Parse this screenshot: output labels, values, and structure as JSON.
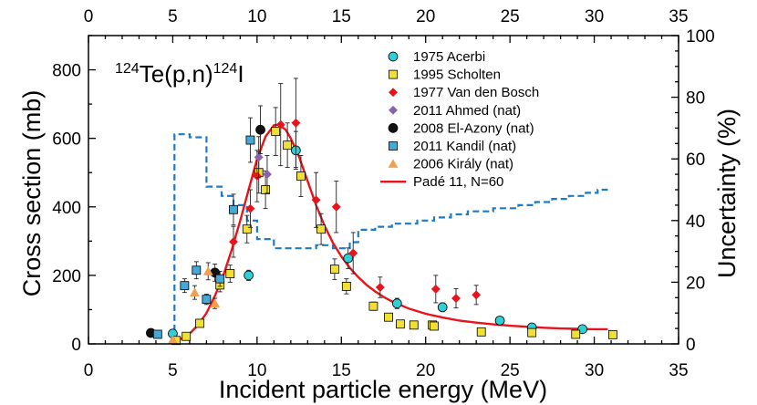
{
  "chart_data": {
    "type": "scatter",
    "annotation": {
      "mass_left": "124",
      "element_left": "Te(p,n)",
      "mass_right": "124",
      "element_right": "I"
    },
    "xlabel": "Incident particle energy (MeV)",
    "ylabel_left": "Cross section (mb)",
    "ylabel_right": "Uncertainty (%)",
    "xlim": [
      0,
      35
    ],
    "ylim_left": [
      0,
      900
    ],
    "ylim_right": [
      0,
      100
    ],
    "x_ticks": [
      "0",
      "5",
      "10",
      "15",
      "20",
      "25",
      "30",
      "35"
    ],
    "y_left_ticks": [
      "0",
      "200",
      "400",
      "600",
      "800"
    ],
    "y_right_ticks": [
      "0",
      "20",
      "40",
      "60",
      "80",
      "100"
    ],
    "legend_position": "top-right",
    "grid": false,
    "series": [
      {
        "name": "1975 Acerbi",
        "marker": "circle",
        "color": "#2ecfd6",
        "points": [
          [
            9.5,
            200,
            15
          ],
          [
            18.3,
            118,
            15
          ],
          [
            21.0,
            107,
            13
          ],
          [
            24.4,
            68,
            10
          ],
          [
            26.3,
            48,
            8
          ],
          [
            29.3,
            43,
            6
          ],
          [
            12.3,
            565,
            55
          ],
          [
            15.4,
            250,
            30
          ],
          [
            5.0,
            30,
            5
          ]
        ]
      },
      {
        "name": "1995 Scholten",
        "marker": "square",
        "color": "#f0e033",
        "points": [
          [
            5.2,
            10,
            3
          ],
          [
            5.8,
            22,
            4
          ],
          [
            6.6,
            60,
            8
          ],
          [
            7.8,
            172,
            20
          ],
          [
            8.4,
            205,
            25
          ],
          [
            9.4,
            335,
            40
          ],
          [
            10.1,
            500,
            60
          ],
          [
            10.5,
            450,
            55
          ],
          [
            11.1,
            620,
            70
          ],
          [
            11.8,
            580,
            65
          ],
          [
            12.6,
            490,
            60
          ],
          [
            13.8,
            335,
            45
          ],
          [
            14.6,
            218,
            30
          ],
          [
            15.3,
            168,
            22
          ],
          [
            16.9,
            110,
            12
          ],
          [
            17.8,
            78,
            10
          ],
          [
            18.5,
            58,
            8
          ],
          [
            19.3,
            55,
            7
          ],
          [
            20.4,
            55,
            7
          ],
          [
            20.5,
            52,
            7
          ],
          [
            23.3,
            35,
            5
          ],
          [
            26.3,
            33,
            5
          ],
          [
            28.9,
            28,
            4
          ],
          [
            31.1,
            27,
            4
          ]
        ]
      },
      {
        "name": "1977 Van den Bosch",
        "marker": "diamond",
        "color": "#e8141c",
        "points": [
          [
            8.6,
            298,
            45
          ],
          [
            9.6,
            395,
            55
          ],
          [
            10.0,
            490,
            75
          ],
          [
            11.4,
            640,
            120
          ],
          [
            12.3,
            645,
            130
          ],
          [
            13.5,
            420,
            80
          ],
          [
            14.7,
            400,
            75
          ],
          [
            15.7,
            265,
            60
          ],
          [
            17.3,
            165,
            30
          ],
          [
            20.6,
            160,
            40
          ],
          [
            21.8,
            133,
            28
          ],
          [
            23.0,
            143,
            28
          ]
        ]
      },
      {
        "name": "2011 Ahmed (nat)",
        "marker": "diamond",
        "color": "#8a62a8",
        "points": [
          [
            10.1,
            545,
            60
          ],
          [
            10.6,
            495,
            55
          ]
        ]
      },
      {
        "name": "2008 El-Azony (nat)",
        "marker": "circle",
        "color": "#111111",
        "points": [
          [
            3.7,
            32,
            4
          ],
          [
            7.5,
            208,
            25
          ],
          [
            10.2,
            625,
            70
          ]
        ]
      },
      {
        "name": "2011 Kandil (nat)",
        "marker": "square",
        "color": "#45a8d6",
        "points": [
          [
            4.1,
            28,
            4
          ],
          [
            5.7,
            170,
            20
          ],
          [
            6.4,
            215,
            25
          ],
          [
            7.0,
            130,
            15
          ],
          [
            7.8,
            190,
            22
          ],
          [
            8.6,
            392,
            45
          ],
          [
            9.6,
            595,
            65
          ]
        ]
      },
      {
        "name": "2006 Király (nat)",
        "marker": "triangle",
        "color": "#f0a050",
        "points": [
          [
            5.0,
            12,
            3
          ],
          [
            6.3,
            150,
            20
          ],
          [
            7.1,
            212,
            25
          ],
          [
            7.5,
            118,
            15
          ]
        ]
      },
      {
        "name": "Padé 11, N=60",
        "type": "line",
        "color": "#e8141c",
        "points": [
          [
            4.8,
            5
          ],
          [
            5.5,
            15
          ],
          [
            6.0,
            30
          ],
          [
            6.5,
            55
          ],
          [
            7.0,
            90
          ],
          [
            7.5,
            140
          ],
          [
            8.0,
            200
          ],
          [
            8.5,
            275
          ],
          [
            9.0,
            360
          ],
          [
            9.5,
            450
          ],
          [
            10.0,
            540
          ],
          [
            10.5,
            605
          ],
          [
            11.0,
            638
          ],
          [
            11.3,
            640
          ],
          [
            11.7,
            625
          ],
          [
            12.0,
            600
          ],
          [
            12.5,
            545
          ],
          [
            13.0,
            475
          ],
          [
            13.5,
            405
          ],
          [
            14.0,
            345
          ],
          [
            14.5,
            295
          ],
          [
            15.0,
            255
          ],
          [
            15.5,
            222
          ],
          [
            16.0,
            195
          ],
          [
            16.5,
            172
          ],
          [
            17.0,
            153
          ],
          [
            17.5,
            137
          ],
          [
            18.0,
            124
          ],
          [
            19.0,
            103
          ],
          [
            20.0,
            88
          ],
          [
            21.0,
            77
          ],
          [
            22.0,
            68
          ],
          [
            23.0,
            62
          ],
          [
            24.0,
            57
          ],
          [
            25.0,
            53
          ],
          [
            26.0,
            50
          ],
          [
            27.0,
            47
          ],
          [
            28.0,
            45
          ],
          [
            29.0,
            44
          ],
          [
            30.0,
            43
          ],
          [
            30.8,
            43
          ]
        ]
      },
      {
        "name": "uncertainty",
        "type": "step",
        "axis": "right",
        "color": "#1f7ac4",
        "points": [
          [
            4.9,
            2
          ],
          [
            5.1,
            2
          ],
          [
            5.1,
            68
          ],
          [
            6.0,
            68
          ],
          [
            6.0,
            67
          ],
          [
            7.0,
            67
          ],
          [
            7.0,
            51
          ],
          [
            7.9,
            51
          ],
          [
            7.9,
            48
          ],
          [
            8.6,
            48
          ],
          [
            8.6,
            45
          ],
          [
            9.4,
            45
          ],
          [
            9.4,
            40
          ],
          [
            10.0,
            40
          ],
          [
            10.0,
            34
          ],
          [
            11.0,
            34
          ],
          [
            11.0,
            31
          ],
          [
            13.5,
            31
          ],
          [
            13.5,
            32
          ],
          [
            14.5,
            32
          ],
          [
            14.5,
            31
          ],
          [
            15.5,
            31
          ],
          [
            15.5,
            33
          ],
          [
            16.0,
            33
          ],
          [
            16.0,
            37
          ],
          [
            17.0,
            37
          ],
          [
            17.0,
            38
          ],
          [
            18.0,
            38
          ],
          [
            18.0,
            39
          ],
          [
            19.5,
            39
          ],
          [
            19.5,
            40
          ],
          [
            20.5,
            40
          ],
          [
            20.5,
            41
          ],
          [
            21.5,
            41
          ],
          [
            21.5,
            42
          ],
          [
            22.5,
            42
          ],
          [
            22.5,
            43
          ],
          [
            24.0,
            43
          ],
          [
            24.0,
            44
          ],
          [
            25.5,
            44
          ],
          [
            25.5,
            45
          ],
          [
            26.5,
            45
          ],
          [
            26.5,
            46
          ],
          [
            27.5,
            46
          ],
          [
            27.5,
            47
          ],
          [
            28.5,
            47
          ],
          [
            28.5,
            48
          ],
          [
            29.5,
            48
          ],
          [
            29.5,
            49
          ],
          [
            30.2,
            49
          ],
          [
            30.2,
            50
          ],
          [
            30.8,
            50
          ]
        ]
      }
    ]
  }
}
